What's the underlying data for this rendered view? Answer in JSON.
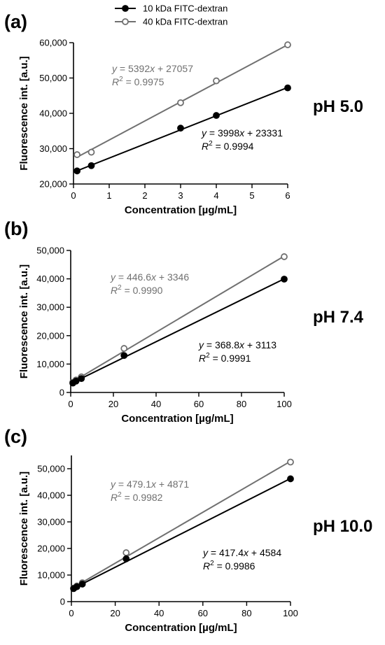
{
  "legend": {
    "placement": "top",
    "items": [
      {
        "label": "10 kDa FITC-dextran",
        "color": "#000000",
        "marker": "filled-circle"
      },
      {
        "label": "40 kDa FITC-dextran",
        "color": "#707070",
        "marker": "open-circle"
      }
    ]
  },
  "chart_data": [
    {
      "type": "scatter",
      "panel_label": "(a)",
      "condition_label": "pH 5.0",
      "xlabel": "Concentration [µg/mL]",
      "ylabel": "Fluorescence int. [a.u.]",
      "xlim": [
        0,
        6
      ],
      "ylim": [
        20000,
        60000
      ],
      "x_ticks": [
        0,
        1,
        2,
        3,
        4,
        5,
        6
      ],
      "y_ticks": [
        20000,
        30000,
        40000,
        50000,
        60000
      ],
      "x_tick_labels": [
        "0",
        "1",
        "2",
        "3",
        "4",
        "5",
        "6"
      ],
      "y_tick_labels": [
        "20,000",
        "30,000",
        "40,000",
        "50,000",
        "60,000"
      ],
      "series": [
        {
          "name": "10 kDa FITC-dextran",
          "color": "#000000",
          "marker": "filled-circle",
          "x": [
            0.1,
            0.5,
            3,
            4,
            6
          ],
          "y": [
            23700,
            25200,
            35800,
            39400,
            47200
          ],
          "fit": {
            "slope": 3998,
            "intercept": 23331
          },
          "equation": "y = 3998x + 23331",
          "r2": "R2 = 0.9994"
        },
        {
          "name": "40 kDa FITC-dextran",
          "color": "#707070",
          "marker": "open-circle",
          "x": [
            0.1,
            0.5,
            3,
            4,
            6
          ],
          "y": [
            28300,
            29000,
            43000,
            49200,
            59400
          ],
          "fit": {
            "slope": 5392,
            "intercept": 27057
          },
          "equation": "y = 5392x + 27057",
          "r2": "R2 = 0.9975"
        }
      ]
    },
    {
      "type": "scatter",
      "panel_label": "(b)",
      "condition_label": "pH 7.4",
      "xlabel": "Concentration [µg/mL]",
      "ylabel": "Fluorescence int. [a.u.]",
      "xlim": [
        0,
        100
      ],
      "ylim": [
        0,
        50000
      ],
      "x_ticks": [
        0,
        20,
        40,
        60,
        80,
        100
      ],
      "y_ticks": [
        0,
        10000,
        20000,
        30000,
        40000,
        50000
      ],
      "x_tick_labels": [
        "0",
        "20",
        "40",
        "60",
        "80",
        "100"
      ],
      "y_tick_labels": [
        "0",
        "10,000",
        "20,000",
        "30,000",
        "40,000",
        "50,000"
      ],
      "series": [
        {
          "name": "10 kDa FITC-dextran",
          "color": "#000000",
          "marker": "filled-circle",
          "x": [
            1,
            2.5,
            5,
            25,
            100
          ],
          "y": [
            3300,
            4000,
            4900,
            13000,
            39900
          ],
          "fit": {
            "slope": 368.8,
            "intercept": 3113
          },
          "equation": "y = 368.8x + 3113",
          "r2": "R2 = 0.9991"
        },
        {
          "name": "40 kDa FITC-dextran",
          "color": "#707070",
          "marker": "open-circle",
          "x": [
            1,
            2.5,
            5,
            25,
            100
          ],
          "y": [
            3600,
            4400,
            5500,
            15500,
            47800
          ],
          "fit": {
            "slope": 446.6,
            "intercept": 3346
          },
          "equation": "y = 446.6x + 3346",
          "r2": "R2 = 0.9990"
        }
      ]
    },
    {
      "type": "scatter",
      "panel_label": "(c)",
      "condition_label": "pH 10.0",
      "xlabel": "Concentration [µg/mL]",
      "ylabel": "Fluorescence int. [a.u.]",
      "xlim": [
        0,
        100
      ],
      "ylim": [
        0,
        55000
      ],
      "x_ticks": [
        0,
        20,
        40,
        60,
        80,
        100
      ],
      "y_ticks": [
        0,
        10000,
        20000,
        30000,
        40000,
        50000
      ],
      "x_tick_labels": [
        "0",
        "20",
        "40",
        "60",
        "80",
        "100"
      ],
      "y_tick_labels": [
        "0",
        "10,000",
        "20,000",
        "30,000",
        "40,000",
        "50,000"
      ],
      "series": [
        {
          "name": "10 kDa FITC-dextran",
          "color": "#000000",
          "marker": "filled-circle",
          "x": [
            1,
            2.5,
            5,
            25,
            100
          ],
          "y": [
            4900,
            5600,
            6600,
            16100,
            46200
          ],
          "fit": {
            "slope": 417.4,
            "intercept": 4584
          },
          "equation": "y = 417.4x + 4584",
          "r2": "R2 = 0.9986"
        },
        {
          "name": "40 kDa FITC-dextran",
          "color": "#707070",
          "marker": "open-circle",
          "x": [
            1,
            2.5,
            5,
            25,
            100
          ],
          "y": [
            5100,
            5900,
            7100,
            18400,
            52500
          ],
          "fit": {
            "slope": 479.1,
            "intercept": 4871
          },
          "equation": "y = 479.1x + 4871",
          "r2": "R2 = 0.9982"
        }
      ]
    }
  ]
}
